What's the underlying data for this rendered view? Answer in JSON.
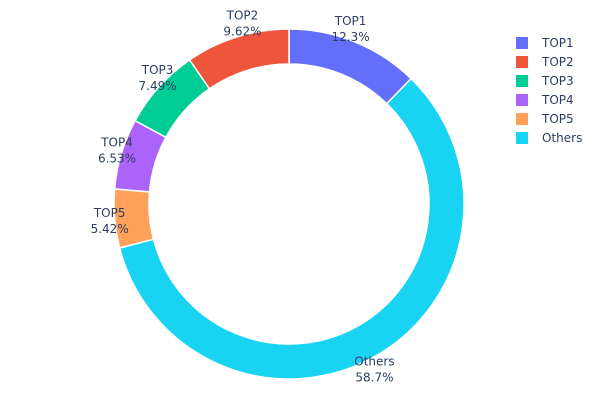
{
  "chart_data": {
    "type": "pie",
    "hole": 0.8,
    "direction": "clockwise",
    "start": "top",
    "slices": [
      {
        "label": "TOP1",
        "value": 12.3,
        "text": "12.3%",
        "color": "#636efa"
      },
      {
        "label": "Others",
        "value": 58.7,
        "text": "58.7%",
        "color": "#19d3f3"
      },
      {
        "label": "TOP5",
        "value": 5.42,
        "text": "5.42%",
        "color": "#ffa15a"
      },
      {
        "label": "TOP4",
        "value": 6.53,
        "text": "6.53%",
        "color": "#ab63fa"
      },
      {
        "label": "TOP3",
        "value": 7.49,
        "text": "7.49%",
        "color": "#00cc96"
      },
      {
        "label": "TOP2",
        "value": 9.62,
        "text": "9.62%",
        "color": "#ef553b"
      }
    ],
    "legend": {
      "placement": "top-right",
      "items": [
        {
          "label": "TOP1",
          "color": "#636efa"
        },
        {
          "label": "TOP2",
          "color": "#ef553b"
        },
        {
          "label": "TOP3",
          "color": "#00cc96"
        },
        {
          "label": "TOP4",
          "color": "#ab63fa"
        },
        {
          "label": "TOP5",
          "color": "#ffa15a"
        },
        {
          "label": "Others",
          "color": "#19d3f3"
        }
      ]
    }
  }
}
